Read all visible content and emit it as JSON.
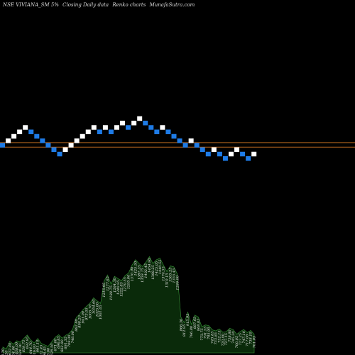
{
  "header": {
    "symbol": "NSE VIVIANA_SM 5%",
    "type": "Closing Daily data",
    "chart": "Renko charts",
    "site": "MunafaSutra.com"
  },
  "colors": {
    "background": "#000000",
    "up_brick": "#ffffff",
    "down_brick": "#1e7be6",
    "reference_line": "#b5651d",
    "volume_fill": "#0a2a0a",
    "volume_stroke": "#3a9a3a"
  },
  "chart_data": [
    {
      "type": "renko",
      "brick_size_percent": 5,
      "reference_lines": [
        1,
        2
      ],
      "bricks": [
        {
          "level": 2,
          "dir": "down"
        },
        {
          "level": 3,
          "dir": "up"
        },
        {
          "level": 4,
          "dir": "up"
        },
        {
          "level": 5,
          "dir": "up"
        },
        {
          "level": 6,
          "dir": "up"
        },
        {
          "level": 5,
          "dir": "down"
        },
        {
          "level": 4,
          "dir": "down"
        },
        {
          "level": 3,
          "dir": "down"
        },
        {
          "level": 2,
          "dir": "down"
        },
        {
          "level": 1,
          "dir": "down"
        },
        {
          "level": 0,
          "dir": "down"
        },
        {
          "level": 1,
          "dir": "up"
        },
        {
          "level": 2,
          "dir": "up"
        },
        {
          "level": 3,
          "dir": "up"
        },
        {
          "level": 4,
          "dir": "up"
        },
        {
          "level": 5,
          "dir": "up"
        },
        {
          "level": 6,
          "dir": "up"
        },
        {
          "level": 5,
          "dir": "down"
        },
        {
          "level": 6,
          "dir": "up"
        },
        {
          "level": 5,
          "dir": "down"
        },
        {
          "level": 6,
          "dir": "up"
        },
        {
          "level": 7,
          "dir": "up"
        },
        {
          "level": 6,
          "dir": "down"
        },
        {
          "level": 7,
          "dir": "up"
        },
        {
          "level": 8,
          "dir": "up"
        },
        {
          "level": 7,
          "dir": "down"
        },
        {
          "level": 6,
          "dir": "down"
        },
        {
          "level": 5,
          "dir": "down"
        },
        {
          "level": 6,
          "dir": "up"
        },
        {
          "level": 5,
          "dir": "down"
        },
        {
          "level": 4,
          "dir": "down"
        },
        {
          "level": 3,
          "dir": "down"
        },
        {
          "level": 2,
          "dir": "down"
        },
        {
          "level": 3,
          "dir": "up"
        },
        {
          "level": 2,
          "dir": "down"
        },
        {
          "level": 1,
          "dir": "down"
        },
        {
          "level": 0,
          "dir": "down"
        },
        {
          "level": 1,
          "dir": "up"
        },
        {
          "level": 0,
          "dir": "down"
        },
        {
          "level": -1,
          "dir": "down"
        },
        {
          "level": 0,
          "dir": "up"
        },
        {
          "level": 1,
          "dir": "up"
        },
        {
          "level": 0,
          "dir": "down"
        },
        {
          "level": -1,
          "dir": "down"
        },
        {
          "level": 0,
          "dir": "up"
        }
      ]
    },
    {
      "type": "area",
      "series_role": "volume",
      "labels": [
        "576.30",
        "558.20",
        "632.40",
        "604.00",
        "638.00",
        "624.30",
        "659.75",
        "692.95",
        "644.70",
        "616.00",
        "661.10",
        "612.45",
        "596.45",
        "583.60",
        "626.50",
        "671.60",
        "696.85",
        "662.90",
        "691.35",
        "709.00",
        "748.00",
        "862.80",
        "898.20",
        "941.00",
        "973.05",
        "1005.70",
        "1054.60",
        "1025.00",
        "1001.05",
        "1216.85",
        "1277.65",
        "1188.75",
        "1264.30",
        "1240.95",
        "1222.85",
        "1270.55",
        "1295.00",
        "1370.90",
        "1425.50",
        "1387.35",
        "1359.75",
        "1402.45",
        "1454.90",
        "1388.25",
        "1425.05",
        "1440.55",
        "1374.55",
        "1310.15",
        "1365.25",
        "1355.45",
        "1286.00",
        "866.30",
        "812.95",
        "915.95",
        "796.80",
        "887.05",
        "868.05",
        "773.75",
        "791.55",
        "785.90",
        "743.85",
        "733.85",
        "752.15",
        "720.00",
        "727.15",
        "758.80",
        "745.20",
        "700.05",
        "727.25",
        "747.10",
        "717.00",
        "738.10",
        "701.05"
      ],
      "values": [
        576.3,
        558.2,
        632.4,
        604.0,
        638.0,
        624.3,
        659.75,
        692.95,
        644.7,
        616.0,
        661.1,
        612.45,
        596.45,
        583.6,
        626.5,
        671.6,
        696.85,
        662.9,
        691.35,
        709.0,
        748.0,
        862.8,
        898.2,
        941.0,
        973.05,
        1005.7,
        1054.6,
        1025.0,
        1001.05,
        1216.85,
        1277.65,
        1188.75,
        1264.3,
        1240.95,
        1222.85,
        1270.55,
        1295.0,
        1370.9,
        1425.5,
        1387.35,
        1359.75,
        1402.45,
        1454.9,
        1388.25,
        1425.05,
        1440.55,
        1374.55,
        1310.15,
        1365.25,
        1355.45,
        1286.0,
        866.3,
        812.95,
        915.95,
        796.8,
        887.05,
        868.05,
        773.75,
        791.55,
        785.9,
        743.85,
        733.85,
        752.15,
        720.0,
        727.15,
        758.8,
        745.2,
        700.05,
        727.25,
        747.1,
        717.0,
        738.1,
        701.05
      ],
      "ylim": [
        520,
        1500
      ]
    }
  ]
}
